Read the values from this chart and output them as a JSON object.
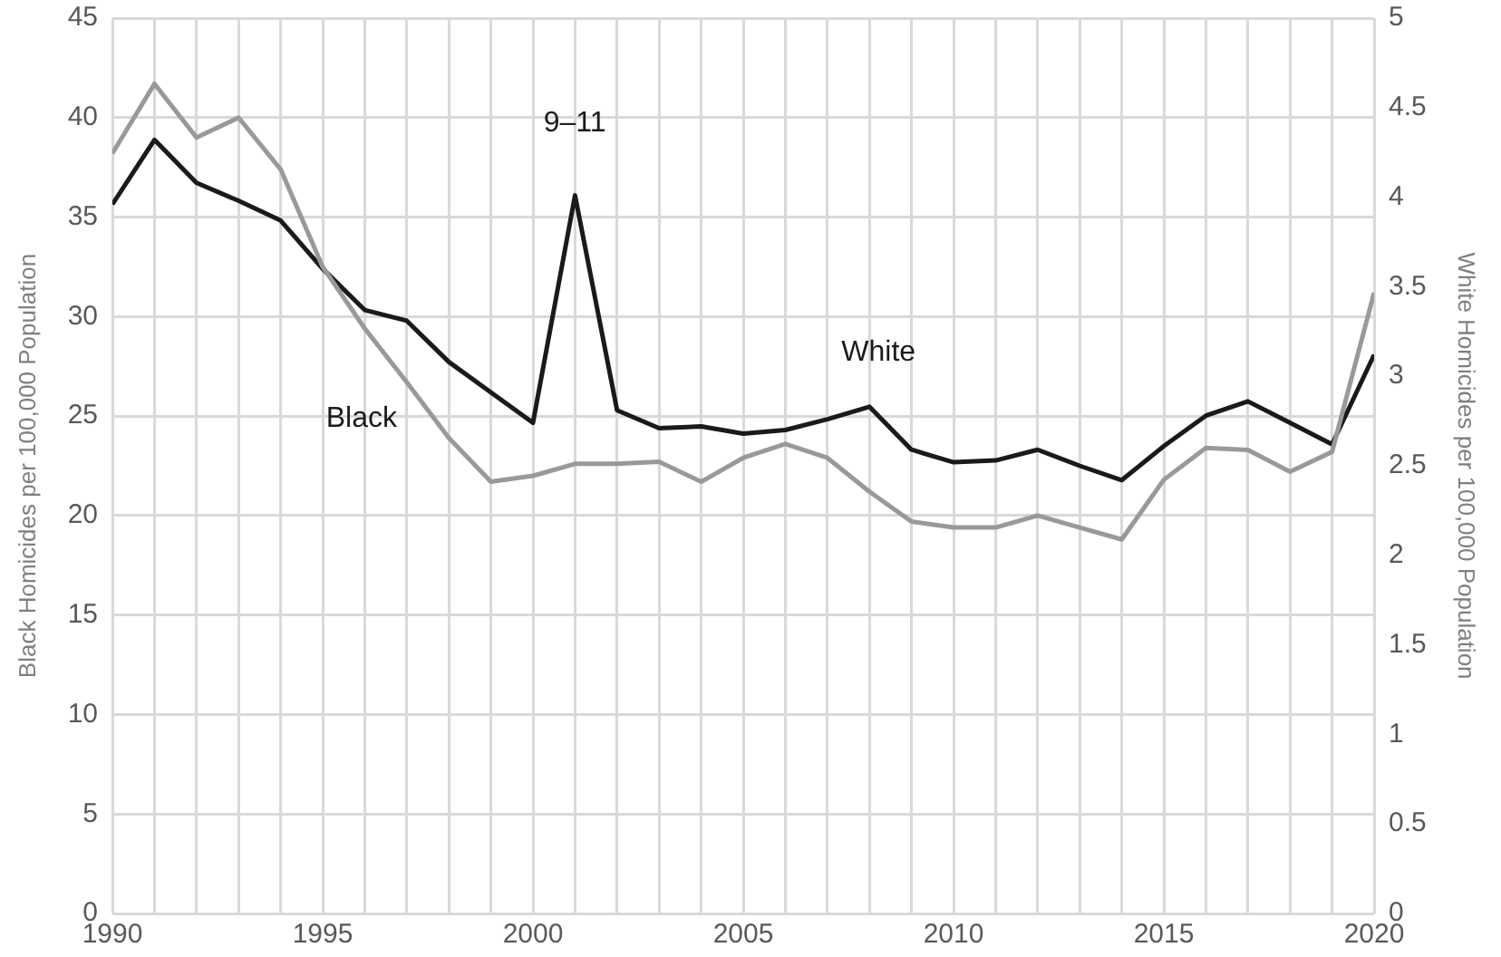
{
  "chart_data": {
    "type": "line",
    "ylabel": "Black Homicides per 100,000 Population",
    "y2label": "White Homicides per 100,000 Population",
    "x": [
      1990,
      1991,
      1992,
      1993,
      1994,
      1995,
      1996,
      1997,
      1998,
      1999,
      2000,
      2001,
      2002,
      2003,
      2004,
      2005,
      2006,
      2007,
      2008,
      2009,
      2010,
      2011,
      2012,
      2013,
      2014,
      2015,
      2016,
      2017,
      2018,
      2019,
      2020
    ],
    "series": [
      {
        "name": "Black",
        "color": "#999999",
        "values": [
          38.2,
          41.7,
          39.0,
          40.0,
          37.4,
          32.5,
          29.4,
          26.7,
          23.9,
          21.7,
          22.0,
          22.6,
          22.6,
          22.7,
          21.7,
          22.9,
          23.6,
          22.9,
          21.2,
          19.7,
          19.4,
          19.4,
          20.0,
          19.4,
          18.8,
          21.8,
          23.4,
          23.3,
          22.2,
          23.2,
          31.2
        ]
      },
      {
        "name": "White",
        "color": "#1a1a1a",
        "axis": "y2",
        "values": [
          3.96,
          4.32,
          4.08,
          3.98,
          3.87,
          3.6,
          3.37,
          3.31,
          3.08,
          2.91,
          2.74,
          4.01,
          2.81,
          2.71,
          2.72,
          2.68,
          2.7,
          2.76,
          2.83,
          2.59,
          2.52,
          2.53,
          2.59,
          2.5,
          2.42,
          2.61,
          2.78,
          2.86,
          2.74,
          2.62,
          3.12
        ]
      }
    ],
    "annotations": [
      "9–11"
    ],
    "xlim": [
      1990,
      2020
    ],
    "xticks": [
      1990,
      {
        "value": 1991,
        "label": null
      },
      {
        "value": 1992,
        "label": null
      },
      {
        "value": 1993,
        "label": null
      },
      {
        "value": 1994,
        "label": null
      },
      1995,
      {
        "value": 1996,
        "label": null
      },
      {
        "value": 1997,
        "label": null
      },
      {
        "value": 1998,
        "label": null
      },
      {
        "value": 1999,
        "label": null
      },
      2000,
      {
        "value": 2001,
        "label": null
      },
      {
        "value": 2002,
        "label": null
      },
      {
        "value": 2003,
        "label": null
      },
      {
        "value": 2004,
        "label": null
      },
      2005,
      {
        "value": 2006,
        "label": null
      },
      {
        "value": 2007,
        "label": null
      },
      {
        "value": 2008,
        "label": null
      },
      {
        "value": 2009,
        "label": null
      },
      2010,
      {
        "value": 2011,
        "label": null
      },
      {
        "value": 2012,
        "label": null
      },
      {
        "value": 2013,
        "label": null
      },
      {
        "value": 2014,
        "label": null
      },
      2015,
      {
        "value": 2016,
        "label": null
      },
      {
        "value": 2017,
        "label": null
      },
      {
        "value": 2018,
        "label": null
      },
      {
        "value": 2019,
        "label": null
      },
      2020
    ],
    "ylim": [
      0,
      45
    ],
    "yticks": [
      0,
      5,
      10,
      15,
      20,
      25,
      30,
      35,
      40,
      45
    ],
    "y2lim": [
      0,
      5
    ],
    "y2ticks": [
      0,
      0.5,
      1,
      1.5,
      2,
      2.5,
      3,
      3.5,
      4,
      4.5,
      5
    ],
    "grid": true,
    "legend": false,
    "marker": "none",
    "line_style": "solid"
  }
}
